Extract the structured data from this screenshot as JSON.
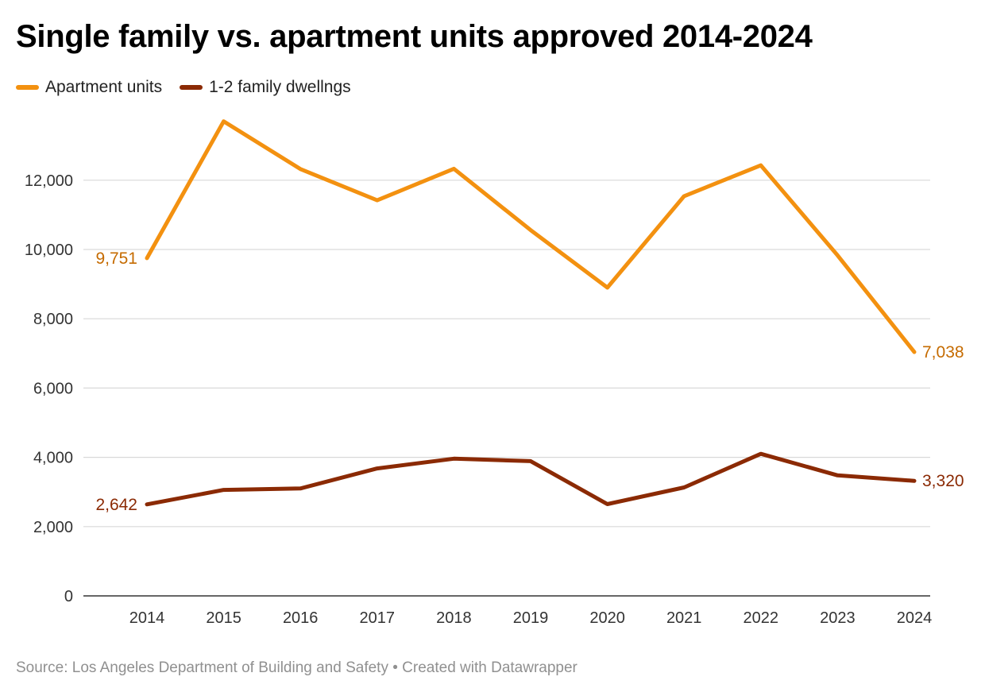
{
  "chart_data": {
    "type": "line",
    "title": "Single family vs. apartment units approved 2014-2024",
    "xlabel": "",
    "ylabel": "",
    "x": [
      "2014",
      "2015",
      "2016",
      "2017",
      "2018",
      "2019",
      "2020",
      "2021",
      "2022",
      "2023",
      "2024"
    ],
    "ylim": [
      0,
      13800
    ],
    "yticks": [
      0,
      2000,
      4000,
      6000,
      8000,
      10000,
      12000
    ],
    "ytick_labels": [
      "0",
      "2,000",
      "4,000",
      "6,000",
      "8,000",
      "10,000",
      "12,000"
    ],
    "grid": true,
    "legend_position": "top-left",
    "series": [
      {
        "name": "Apartment units",
        "color": "#f39110",
        "label_color": "#c56b00",
        "values": [
          9751,
          13700,
          12320,
          11420,
          12330,
          10560,
          8900,
          11540,
          12430,
          9830,
          7038
        ],
        "start_label": "9,751",
        "end_label": "7,038"
      },
      {
        "name": "1-2 family dwellngs",
        "color": "#8b2a04",
        "label_color": "#8b2a04",
        "values": [
          2642,
          3060,
          3100,
          3680,
          3960,
          3890,
          2650,
          3130,
          4100,
          3480,
          3320
        ],
        "start_label": "2,642",
        "end_label": "3,320"
      }
    ]
  },
  "footer": {
    "text": "Source: Los Angeles Department of Building and Safety • Created with Datawrapper"
  }
}
